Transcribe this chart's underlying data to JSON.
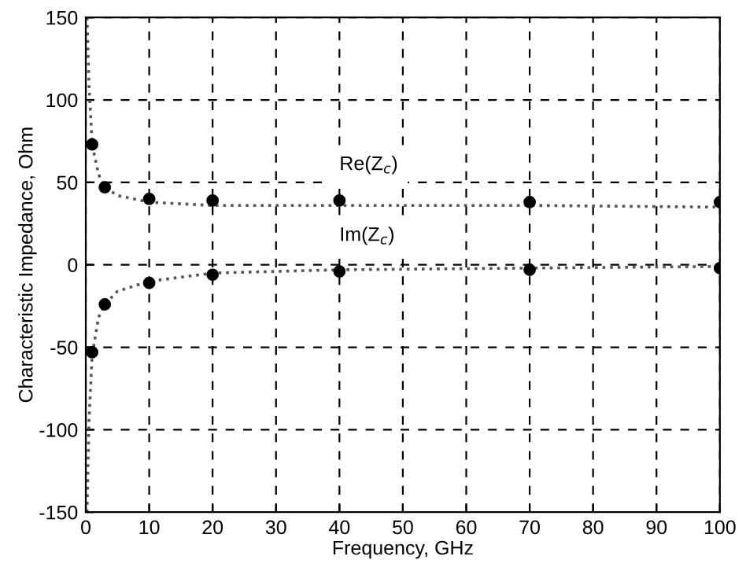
{
  "chart_data": {
    "type": "line",
    "xlabel": "Frequency, GHz",
    "ylabel": "Characteristic Impedance, Ohm",
    "xlim": [
      0,
      100
    ],
    "ylim": [
      -150,
      150
    ],
    "xticks": [
      0,
      10,
      20,
      30,
      40,
      50,
      60,
      70,
      80,
      90,
      100
    ],
    "yticks": [
      -150,
      -100,
      -50,
      0,
      50,
      100,
      150
    ],
    "grid": true,
    "series": [
      {
        "color": "#555555",
        "line_style": "dotted",
        "marker": "none",
        "x": [
          0.2,
          0.5,
          1,
          2,
          3,
          5,
          10,
          20,
          40,
          70,
          100
        ],
        "values": [
          150,
          110,
          73,
          55,
          47,
          42,
          38,
          36,
          36,
          36,
          35
        ]
      },
      {
        "color": "#555555",
        "line_style": "dotted",
        "marker": "none",
        "x": [
          0.2,
          0.5,
          1,
          2,
          3,
          5,
          10,
          20,
          40,
          70,
          100
        ],
        "values": [
          -150,
          -95,
          -55,
          -32,
          -24,
          -16,
          -10,
          -5,
          -3,
          -2,
          -1
        ]
      },
      {
        "type": "scatter",
        "name": "Re(Z$_{c}$)",
        "color": "#000000",
        "marker": "circle",
        "x": [
          1,
          3,
          10,
          20,
          40,
          70,
          100
        ],
        "values": [
          73,
          47,
          40,
          39,
          39,
          38,
          38
        ]
      },
      {
        "type": "scatter",
        "name": "Im(Z$_{c}$)",
        "color": "#000000",
        "marker": "circle",
        "x": [
          1,
          3,
          10,
          20,
          40,
          70,
          100
        ],
        "values": [
          -53,
          -24,
          -11,
          -6,
          -4,
          -3,
          -2
        ]
      }
    ]
  }
}
